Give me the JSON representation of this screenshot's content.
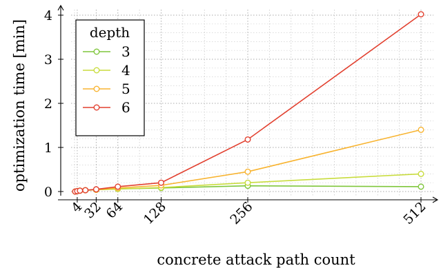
{
  "chart_data": {
    "type": "line",
    "title": "",
    "xlabel": "concrete attack path count",
    "ylabel": "optimization time [min]",
    "x_ticks": [
      4,
      32,
      64,
      128,
      256,
      512
    ],
    "y_ticks": [
      0,
      1,
      2,
      3,
      4
    ],
    "xlim": [
      0,
      512
    ],
    "ylim": [
      0,
      4
    ],
    "grid": true,
    "legend": {
      "title": "depth",
      "placement": "top-left"
    },
    "series": [
      {
        "name": "3",
        "color": "#7ec63a",
        "x": [
          1,
          4,
          8,
          16,
          32,
          64,
          128,
          256,
          512
        ],
        "y": [
          0.0,
          0.01,
          0.02,
          0.03,
          0.04,
          0.06,
          0.08,
          0.13,
          0.11
        ]
      },
      {
        "name": "4",
        "color": "#c8dc3c",
        "x": [
          1,
          4,
          8,
          16,
          32,
          64,
          128,
          256,
          512
        ],
        "y": [
          0.0,
          0.01,
          0.02,
          0.03,
          0.04,
          0.06,
          0.09,
          0.2,
          0.4
        ]
      },
      {
        "name": "5",
        "color": "#f8b431",
        "x": [
          1,
          4,
          8,
          16,
          32,
          64,
          128,
          256,
          512
        ],
        "y": [
          0.0,
          0.01,
          0.02,
          0.03,
          0.04,
          0.08,
          0.14,
          0.45,
          1.4
        ]
      },
      {
        "name": "6",
        "color": "#e2402f",
        "x": [
          1,
          4,
          8,
          16,
          32,
          64,
          128,
          256,
          512
        ],
        "y": [
          0.0,
          0.01,
          0.02,
          0.03,
          0.05,
          0.11,
          0.2,
          1.18,
          4.02
        ]
      }
    ]
  }
}
